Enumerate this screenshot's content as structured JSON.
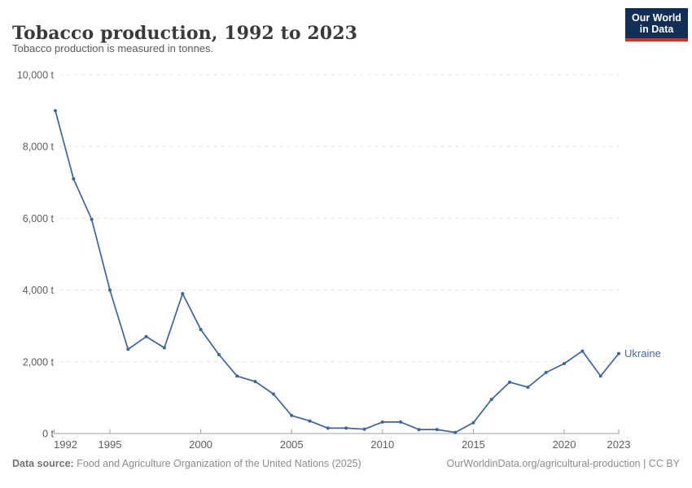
{
  "header": {
    "title": "Tobacco production, 1992 to 2023",
    "subtitle": "Tobacco production is measured in tonnes."
  },
  "logo": {
    "line1": "Our World",
    "line2": "in Data",
    "bg_color": "#112f54",
    "accent_color": "#d0301f"
  },
  "footer": {
    "source_label": "Data source:",
    "source_text": " Food and Agriculture Organization of the United Nations (2025)",
    "credit": "OurWorldinData.org/agricultural-production | CC BY"
  },
  "colors": {
    "series_line": "#3d649c",
    "grid_line": "#e4e4e4",
    "axis_line": "#a1a1a1",
    "tick_label": "#5e5e5e",
    "entity_label": "#4a6b9b"
  },
  "chart_data": {
    "type": "line",
    "title": "Tobacco production, 1992 to 2023",
    "subtitle": "Tobacco production is measured in tonnes.",
    "xlabel": "",
    "ylabel": "",
    "unit": "t",
    "xlim": [
      1992,
      2023
    ],
    "ylim": [
      0,
      10000
    ],
    "x_ticks": [
      1992,
      1995,
      2000,
      2005,
      2010,
      2015,
      2020,
      2023
    ],
    "y_ticks": [
      0,
      2000,
      4000,
      6000,
      8000,
      10000
    ],
    "grid": "horizontal-dashed",
    "legend_position": "end-of-line",
    "series": [
      {
        "name": "Ukraine",
        "color": "#3d649c",
        "x": [
          1992,
          1993,
          1994,
          1995,
          1996,
          1997,
          1998,
          1999,
          2000,
          2001,
          2002,
          2003,
          2004,
          2005,
          2006,
          2007,
          2008,
          2009,
          2010,
          2011,
          2012,
          2013,
          2014,
          2015,
          2016,
          2017,
          2018,
          2019,
          2020,
          2021,
          2022,
          2023
        ],
        "values": [
          9000,
          7100,
          5970,
          4000,
          2350,
          2700,
          2390,
          3900,
          2900,
          2200,
          1600,
          1450,
          1100,
          500,
          350,
          150,
          150,
          120,
          320,
          320,
          110,
          110,
          30,
          300,
          950,
          1430,
          1290,
          1700,
          1950,
          2300,
          1600,
          2230
        ]
      }
    ]
  }
}
